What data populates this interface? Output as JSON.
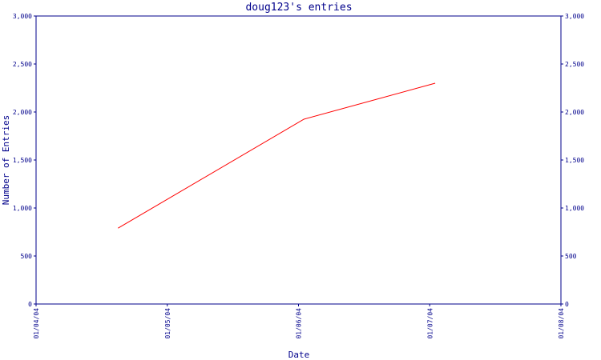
{
  "chart_data": {
    "type": "line",
    "title": "doug123's entries",
    "xlabel": "Date",
    "ylabel": "Number of Entries",
    "x_ticks": [
      "01/04/04",
      "01/05/04",
      "01/06/04",
      "01/07/04",
      "01/08/04"
    ],
    "y_ticks": [
      "0",
      "500",
      "1,000",
      "1,500",
      "2,000",
      "2,500",
      "3,000"
    ],
    "ylim": [
      0,
      3000
    ],
    "xlim": [
      "2004-01-04",
      "2004-01-08"
    ],
    "y_axis_right": true,
    "grid": false,
    "series": [
      {
        "color": "#ff0000",
        "x": [
          "2004-01-04T15:00",
          "2004-01-06T01:00",
          "2004-01-07T01:00"
        ],
        "values": [
          790,
          1925,
          2300
        ]
      }
    ],
    "colors": {
      "axis": "#00008b",
      "series": "#ff0000",
      "background": "#ffffff"
    }
  }
}
